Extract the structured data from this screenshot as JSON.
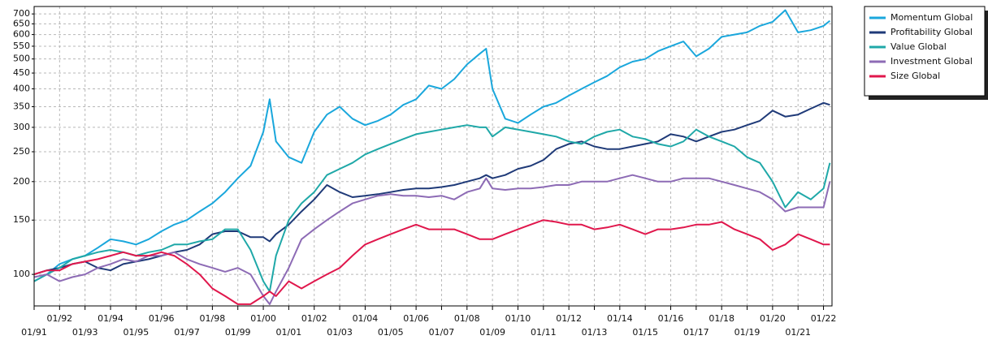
{
  "chart_data": {
    "type": "line",
    "log_y": true,
    "grid": true,
    "legend": "right",
    "x": [
      "01/91",
      "07/91",
      "01/92",
      "07/92",
      "01/93",
      "07/93",
      "01/94",
      "07/94",
      "01/95",
      "07/95",
      "01/96",
      "07/96",
      "01/97",
      "07/97",
      "01/98",
      "07/98",
      "01/99",
      "07/99",
      "01/00",
      "04/00",
      "07/00",
      "01/01",
      "07/01",
      "01/02",
      "07/02",
      "01/03",
      "07/03",
      "01/04",
      "07/04",
      "01/05",
      "07/05",
      "01/06",
      "07/06",
      "01/07",
      "07/07",
      "01/08",
      "07/08",
      "10/08",
      "01/09",
      "07/09",
      "01/10",
      "07/10",
      "01/11",
      "07/11",
      "01/12",
      "07/12",
      "01/13",
      "07/13",
      "01/14",
      "07/14",
      "01/15",
      "07/15",
      "01/16",
      "07/16",
      "01/17",
      "07/17",
      "01/18",
      "07/18",
      "01/19",
      "07/19",
      "01/20",
      "07/20",
      "01/21",
      "07/21",
      "01/22",
      "04/22"
    ],
    "xlim": [
      "01/91",
      "05/22"
    ],
    "xticks": [
      "01/91",
      "01/92",
      "01/93",
      "01/94",
      "01/95",
      "01/96",
      "01/97",
      "01/98",
      "01/99",
      "01/00",
      "01/01",
      "01/02",
      "01/03",
      "01/04",
      "01/05",
      "01/06",
      "01/07",
      "01/08",
      "01/09",
      "01/10",
      "01/11",
      "01/12",
      "01/13",
      "01/14",
      "01/15",
      "01/16",
      "01/17",
      "01/18",
      "01/19",
      "01/20",
      "01/21",
      "01/22"
    ],
    "ylim": [
      79,
      740
    ],
    "yticks": [
      100,
      150,
      200,
      250,
      300,
      350,
      400,
      450,
      500,
      550,
      600,
      650,
      700
    ],
    "series": [
      {
        "name": "Momentum Global",
        "color": "#1aa7dc",
        "values": [
          95,
          100,
          108,
          112,
          115,
          122,
          130,
          128,
          125,
          130,
          138,
          145,
          150,
          160,
          170,
          185,
          205,
          225,
          290,
          370,
          270,
          240,
          230,
          290,
          330,
          350,
          320,
          305,
          315,
          330,
          355,
          370,
          410,
          400,
          430,
          480,
          520,
          540,
          400,
          320,
          310,
          330,
          350,
          360,
          380,
          400,
          420,
          440,
          470,
          490,
          500,
          530,
          550,
          570,
          510,
          540,
          590,
          600,
          610,
          640,
          660,
          720,
          610,
          620,
          640,
          665
        ]
      },
      {
        "name": "Profitability Global",
        "color": "#1f3a78",
        "values": [
          100,
          103,
          105,
          108,
          110,
          105,
          103,
          108,
          110,
          112,
          115,
          118,
          120,
          125,
          135,
          138,
          138,
          132,
          132,
          128,
          135,
          145,
          160,
          175,
          195,
          185,
          178,
          180,
          182,
          185,
          188,
          190,
          190,
          192,
          195,
          200,
          205,
          210,
          205,
          210,
          220,
          225,
          235,
          255,
          265,
          270,
          260,
          255,
          255,
          260,
          265,
          270,
          285,
          280,
          270,
          280,
          290,
          295,
          305,
          315,
          340,
          325,
          330,
          345,
          360,
          355
        ]
      },
      {
        "name": "Value Global",
        "color": "#1fa8a8",
        "values": [
          95,
          100,
          105,
          112,
          115,
          118,
          120,
          118,
          115,
          118,
          120,
          125,
          125,
          128,
          130,
          140,
          140,
          120,
          95,
          88,
          115,
          150,
          170,
          185,
          210,
          220,
          230,
          245,
          255,
          265,
          275,
          285,
          290,
          295,
          300,
          305,
          300,
          300,
          280,
          300,
          295,
          290,
          285,
          280,
          270,
          265,
          280,
          290,
          295,
          280,
          275,
          265,
          260,
          270,
          295,
          280,
          270,
          260,
          240,
          230,
          200,
          165,
          185,
          175,
          190,
          230
        ]
      },
      {
        "name": "Investment Global",
        "color": "#8d6bb5",
        "values": [
          98,
          100,
          95,
          98,
          100,
          105,
          108,
          112,
          110,
          115,
          115,
          118,
          112,
          108,
          105,
          102,
          105,
          100,
          85,
          80,
          88,
          105,
          130,
          140,
          150,
          160,
          170,
          175,
          180,
          182,
          180,
          180,
          178,
          180,
          175,
          185,
          190,
          205,
          190,
          188,
          190,
          190,
          192,
          195,
          195,
          200,
          200,
          200,
          205,
          210,
          205,
          200,
          200,
          205,
          205,
          205,
          200,
          195,
          190,
          185,
          175,
          160,
          165,
          165,
          165,
          200
        ]
      },
      {
        "name": "Size Global",
        "color": "#e0174c",
        "values": [
          100,
          103,
          103,
          108,
          110,
          112,
          115,
          118,
          115,
          115,
          118,
          115,
          108,
          100,
          90,
          85,
          80,
          80,
          85,
          88,
          85,
          95,
          90,
          95,
          100,
          105,
          115,
          125,
          130,
          135,
          140,
          145,
          140,
          140,
          140,
          135,
          130,
          130,
          130,
          135,
          140,
          145,
          150,
          148,
          145,
          145,
          140,
          142,
          145,
          140,
          135,
          140,
          140,
          142,
          145,
          145,
          148,
          140,
          135,
          130,
          120,
          125,
          135,
          130,
          125,
          125
        ]
      }
    ]
  }
}
